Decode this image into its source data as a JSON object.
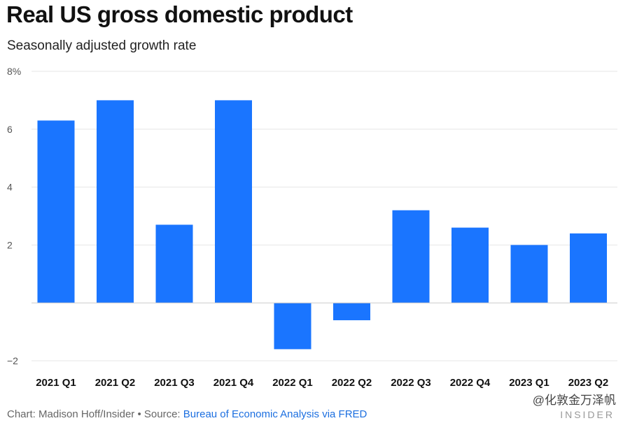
{
  "title": "Real US gross domestic product",
  "subtitle": "Seasonally adjusted growth rate",
  "footer": {
    "credit": "Chart: Madison Hoff/Insider • Source:",
    "source": "Bureau of Economic Analysis via FRED"
  },
  "watermark": "@化敦金万泽帆",
  "brand": "INSIDER",
  "colors": {
    "bar": "#1a75ff",
    "grid": "#e6e6e6",
    "zero_line": "#cccccc"
  },
  "chart_data": {
    "type": "bar",
    "categories": [
      "2021 Q1",
      "2021 Q2",
      "2021 Q3",
      "2021 Q4",
      "2022 Q1",
      "2022 Q2",
      "2022 Q3",
      "2022 Q4",
      "2023 Q1",
      "2023 Q2"
    ],
    "values": [
      6.3,
      7.0,
      2.7,
      7.0,
      -1.6,
      -0.6,
      3.2,
      2.6,
      2.0,
      2.4
    ],
    "ylim": [
      -2,
      8
    ],
    "yticks": [
      -2,
      2,
      4,
      6,
      8
    ],
    "ytick_labels": [
      "−2",
      "2",
      "4",
      "6",
      "8%"
    ],
    "grid": true,
    "xlabel": "",
    "ylabel": ""
  }
}
